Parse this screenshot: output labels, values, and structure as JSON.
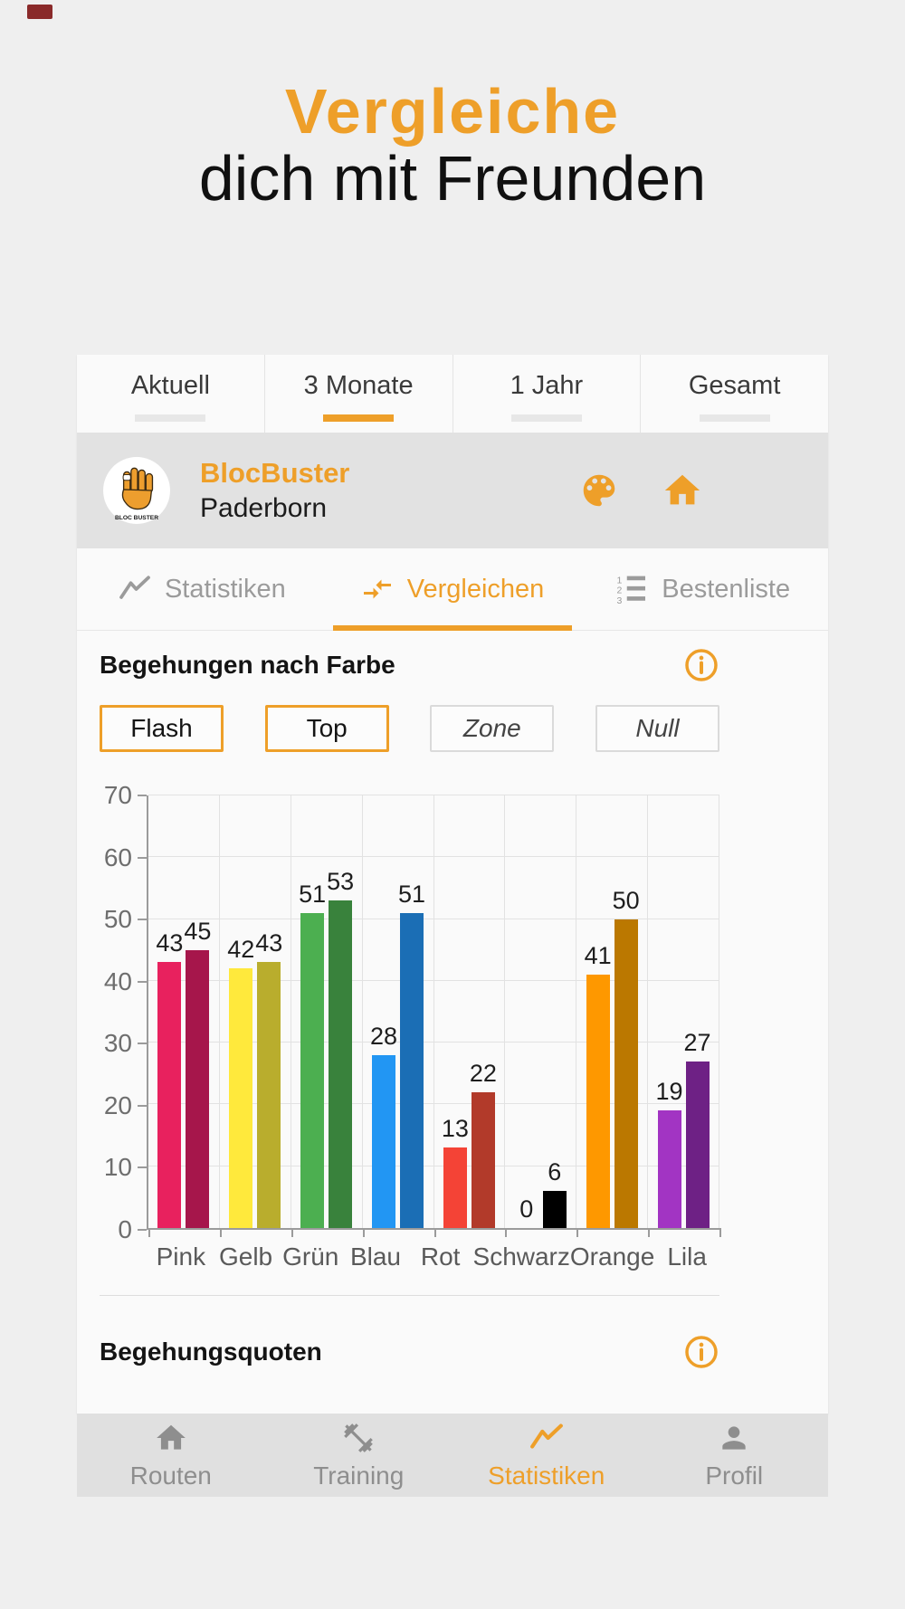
{
  "page_title": {
    "line1": "Vergleiche",
    "line2": "dich mit Freunden"
  },
  "period_tabs": [
    {
      "label": "Aktuell",
      "selected": false
    },
    {
      "label": "3 Monate",
      "selected": true
    },
    {
      "label": "1 Jahr",
      "selected": false
    },
    {
      "label": "Gesamt",
      "selected": false
    }
  ],
  "gym": {
    "name": "BlocBuster",
    "location": "Paderborn",
    "logo_text": "BLOC BUSTER"
  },
  "section_tabs": [
    {
      "label": "Statistiken",
      "icon": "line-chart-icon",
      "selected": false
    },
    {
      "label": "Vergleichen",
      "icon": "compare-arrows-icon",
      "selected": true
    },
    {
      "label": "Bestenliste",
      "icon": "ranked-list-icon",
      "selected": false
    }
  ],
  "color_section": {
    "title": "Begehungen nach Farbe"
  },
  "filters": [
    {
      "label": "Flash",
      "active": true
    },
    {
      "label": "Top",
      "active": true
    },
    {
      "label": "Zone",
      "active": false
    },
    {
      "label": "Null",
      "active": false
    }
  ],
  "chart_data": {
    "type": "bar",
    "title": "Begehungen nach Farbe",
    "categories": [
      "Pink",
      "Gelb",
      "Grün",
      "Blau",
      "Rot",
      "Schwarz",
      "Orange",
      "Lila"
    ],
    "series": [
      {
        "name": "left-bars",
        "values": [
          43,
          42,
          51,
          28,
          13,
          0,
          41,
          19
        ],
        "colors": [
          "#E8215E",
          "#FFE93C",
          "#4CAF50",
          "#2296F3",
          "#F44336",
          "#0A0A0A",
          "#FE9800",
          "#A234C3"
        ]
      },
      {
        "name": "right-bars",
        "values": [
          45,
          43,
          53,
          51,
          22,
          6,
          50,
          27
        ],
        "colors": [
          "#A6164B",
          "#B9AD2D",
          "#39823C",
          "#1B6EB5",
          "#B23A2A",
          "#000000",
          "#BB7800",
          "#6E2185"
        ]
      }
    ],
    "ylim": [
      0,
      70
    ],
    "yticks": [
      0,
      10,
      20,
      30,
      40,
      50,
      60,
      70
    ],
    "grid": true,
    "value_labels": true,
    "legend": false
  },
  "quota_section": {
    "title": "Begehungsquoten"
  },
  "bottom_nav": [
    {
      "label": "Routen",
      "icon": "home-icon",
      "active": false
    },
    {
      "label": "Training",
      "icon": "dumbbell-icon",
      "active": false
    },
    {
      "label": "Statistiken",
      "icon": "line-chart-icon",
      "active": true
    },
    {
      "label": "Profil",
      "icon": "person-icon",
      "active": false
    }
  ],
  "colors": {
    "accent": "#EE9F29",
    "page_bg": "#EFEFEF",
    "card_bg": "#FAFAFA",
    "gym_header_bg": "#E2E2E2",
    "nav_bg": "#E0E0E0",
    "inactive_gray": "#9B9B9B",
    "grid_line": "#E2E2E2",
    "axis_line": "#9B9B9B"
  }
}
